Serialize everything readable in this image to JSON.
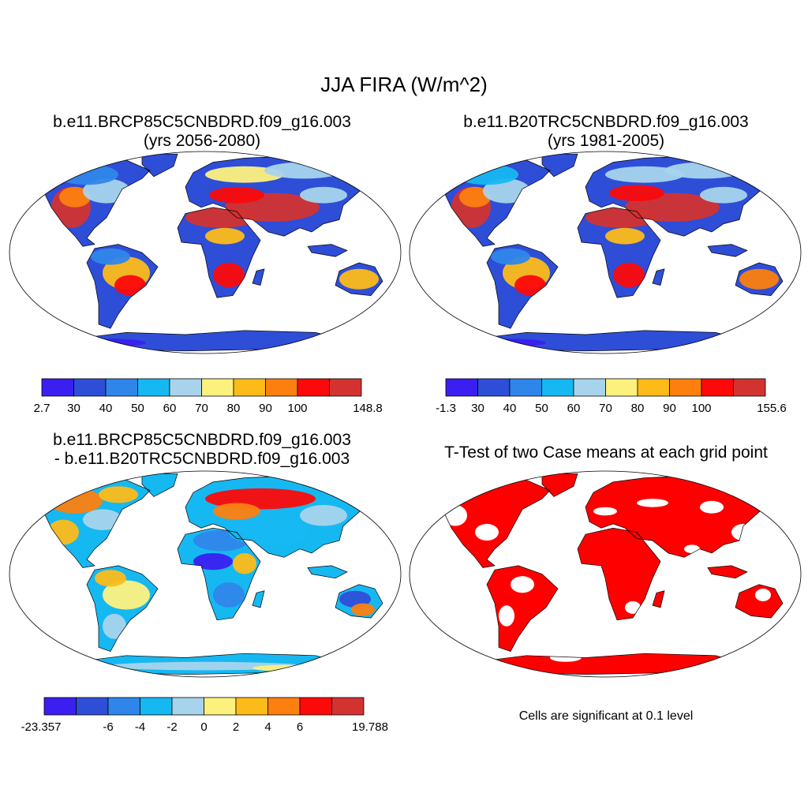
{
  "main_title": "JJA FIRA (W/m^2)",
  "colors": [
    "#3a1ff0",
    "#2e4ed8",
    "#2f86ea",
    "#16b8f2",
    "#a7d4ec",
    "#fdf17e",
    "#fdbb19",
    "#fc7f0f",
    "#fc0a0a",
    "#d23331"
  ],
  "ocean": "#ffffff",
  "land_outline": "#000000",
  "sig_color": "#ff0000",
  "panels": [
    {
      "title_line1": "b.e11.BRCP85C5CNBDRD.f09_g16.003",
      "title_line2": "(yrs 2056-2080)",
      "colorbar_labels": [
        "2.7",
        "30",
        "40",
        "50",
        "60",
        "70",
        "80",
        "90",
        "100",
        "148.8"
      ]
    },
    {
      "title_line1": "b.e11.B20TRC5CNBDRD.f09_g16.003",
      "title_line2": "(yrs 1981-2005)",
      "colorbar_labels": [
        "-1.3",
        "30",
        "40",
        "50",
        "60",
        "70",
        "80",
        "90",
        "100",
        "155.6"
      ]
    },
    {
      "title_line1": "b.e11.BRCP85C5CNBDRD.f09_g16.003",
      "title_line2": "- b.e11.B20TRC5CNBDRD.f09_g16.003",
      "colorbar_labels": [
        "-23.357",
        "-6",
        "-4",
        "-2",
        "0",
        "2",
        "4",
        "6",
        "19.788"
      ]
    },
    {
      "title_line1": "T-Test of two Case means at each grid point",
      "note": "Cells are significant at 0.1 level"
    }
  ]
}
